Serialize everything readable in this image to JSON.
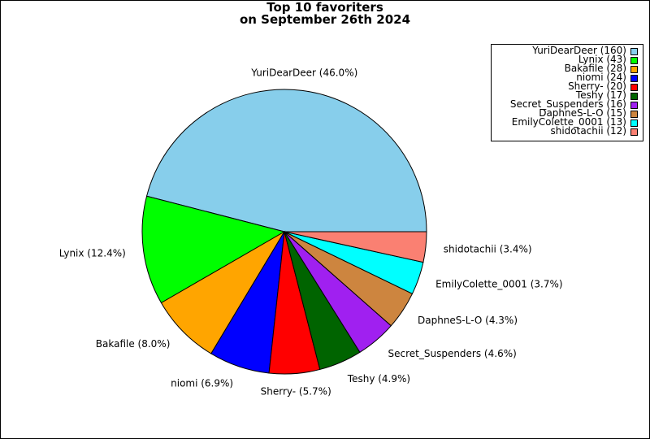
{
  "chart_data": {
    "type": "pie",
    "title_lines": [
      "Top 10 favoriters",
      "on September 26th 2024"
    ],
    "legend_position": "top-right",
    "start_angle_deg": 0,
    "direction": "counterclockwise",
    "slices": [
      {
        "name": "YuriDearDeer",
        "value": 160,
        "percent_label": "YuriDearDeer (46.0%)",
        "legend_label": "YuriDearDeer (160)",
        "color": "#87ceeb"
      },
      {
        "name": "Lynix",
        "value": 43,
        "percent_label": "Lynix (12.4%)",
        "legend_label": "Lynix (43)",
        "color": "#00ff00"
      },
      {
        "name": "Bakafile",
        "value": 28,
        "percent_label": "Bakafile (8.0%)",
        "legend_label": "Bakafile (28)",
        "color": "#ffa500"
      },
      {
        "name": "niomi",
        "value": 24,
        "percent_label": "niomi (6.9%)",
        "legend_label": "niomi (24)",
        "color": "#0000ff"
      },
      {
        "name": "Sherry-",
        "value": 20,
        "percent_label": "Sherry- (5.7%)",
        "legend_label": "Sherry- (20)",
        "color": "#ff0000"
      },
      {
        "name": "Teshy",
        "value": 17,
        "percent_label": "Teshy (4.9%)",
        "legend_label": "Teshy (17)",
        "color": "#006400"
      },
      {
        "name": "Secret_Suspenders",
        "value": 16,
        "percent_label": "Secret_Suspenders (4.6%)",
        "legend_label": "Secret_Suspenders (16)",
        "color": "#a020f0"
      },
      {
        "name": "DaphneS-L-O",
        "value": 15,
        "percent_label": "DaphneS-L-O (4.3%)",
        "legend_label": "DaphneS-L-O (15)",
        "color": "#cd853f"
      },
      {
        "name": "EmilyColette_0001",
        "value": 13,
        "percent_label": "EmilyColette_0001 (3.7%)",
        "legend_label": "EmilyColette_0001 (13)",
        "color": "#00ffff"
      },
      {
        "name": "shidotachii",
        "value": 12,
        "percent_label": "shidotachii (3.4%)",
        "legend_label": "shidotachii (12)",
        "color": "#fa8072"
      }
    ]
  }
}
